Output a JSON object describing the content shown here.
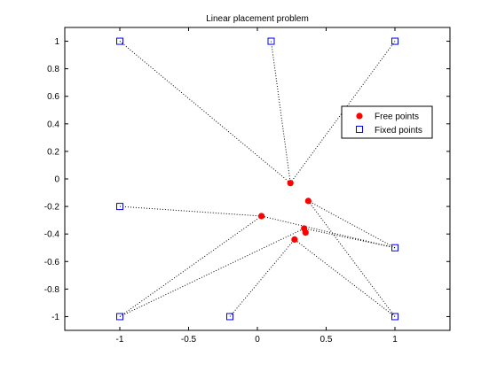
{
  "chart_data": {
    "type": "scatter",
    "title": "Linear placement problem",
    "xlabel": "",
    "ylabel": "",
    "xlim": [
      -1.4,
      1.4
    ],
    "ylim": [
      -1.1,
      1.1
    ],
    "xticks": [
      -1,
      -0.5,
      0,
      0.5,
      1
    ],
    "yticks": [
      -1,
      -0.8,
      -0.6,
      -0.4,
      -0.2,
      0,
      0.2,
      0.4,
      0.6,
      0.8,
      1
    ],
    "grid": false,
    "legend_position": "right",
    "series": [
      {
        "name": "Free points",
        "marker": "filled-circle",
        "color": "#ff0000",
        "x": [
          0.24,
          0.37,
          0.03,
          0.34,
          0.35,
          0.27
        ],
        "y": [
          -0.03,
          -0.16,
          -0.27,
          -0.36,
          -0.39,
          -0.44
        ]
      },
      {
        "name": "Fixed points",
        "marker": "square",
        "color": "#0000ff",
        "x": [
          -1,
          0.1,
          1,
          -1,
          1,
          -1,
          -0.2,
          1
        ],
        "y": [
          1,
          1,
          1,
          -0.2,
          -0.5,
          -1,
          -1,
          -1
        ]
      }
    ],
    "links": [
      [
        1,
        0
      ],
      [
        2,
        0
      ],
      [
        0,
        0
      ],
      [
        4,
        1
      ],
      [
        7,
        1
      ],
      [
        3,
        2
      ],
      [
        4,
        2
      ],
      [
        5,
        2
      ],
      [
        5,
        3
      ],
      [
        4,
        3
      ],
      [
        6,
        5
      ],
      [
        7,
        5
      ]
    ],
    "link_style": "dotted"
  }
}
